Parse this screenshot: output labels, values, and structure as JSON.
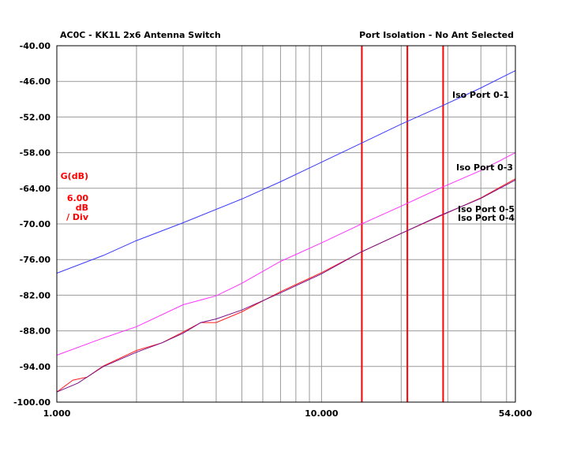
{
  "chart_data": {
    "type": "line",
    "title_left": "AC0C - KK1L 2x6 Antenna Switch",
    "title_right": "Port Isolation - No Ant Selected",
    "scale_label": {
      "unit": "G(dB)",
      "per_div_value": "6.00",
      "per_div_unit": "dB",
      "per_div_suffix": "/ Div"
    },
    "x_scale": "log",
    "xlim": [
      1.0,
      54.0
    ],
    "x_tick_labels": [
      {
        "value": 1.0,
        "label": "1.000"
      },
      {
        "value": 10.0,
        "label": "10.000"
      },
      {
        "value": 54.0,
        "label": "54.000"
      }
    ],
    "x_minor_gridlines": [
      2,
      3,
      4,
      5,
      6,
      7,
      8,
      9,
      20,
      30,
      40,
      50
    ],
    "ylim": [
      -100.0,
      -40.0
    ],
    "y_ticks": [
      {
        "value": -40,
        "label": "-40.00"
      },
      {
        "value": -46,
        "label": "-46.00"
      },
      {
        "value": -52,
        "label": "-52.00"
      },
      {
        "value": -58,
        "label": "-58.00"
      },
      {
        "value": -64,
        "label": "-64.00"
      },
      {
        "value": -70,
        "label": "-70.00"
      },
      {
        "value": -76,
        "label": "-76.00"
      },
      {
        "value": -82,
        "label": "-82.00"
      },
      {
        "value": -88,
        "label": "-88.00"
      },
      {
        "value": -94,
        "label": "-94.00"
      },
      {
        "value": -100,
        "label": "-100.00"
      }
    ],
    "markers": [
      14.2,
      21.1,
      28.8
    ],
    "marker_color": "#ff0000",
    "grid": true,
    "series": [
      {
        "name": "Iso Port 0-1",
        "color": "#3a3aff",
        "x": [
          1.0,
          1.5,
          2.0,
          3.0,
          5.0,
          7.0,
          10.0,
          14.0,
          20.0,
          28.0,
          40.0,
          54.0
        ],
        "y": [
          -78.3,
          -75.3,
          -72.8,
          -69.8,
          -65.8,
          -62.9,
          -59.6,
          -56.5,
          -53.2,
          -50.3,
          -47.1,
          -44.2
        ]
      },
      {
        "name": "Iso Port 0-3",
        "color": "#ff33ff",
        "x": [
          1.0,
          1.5,
          2.0,
          3.0,
          4.0,
          5.0,
          7.0,
          10.0,
          14.0,
          20.0,
          28.0,
          40.0,
          54.0
        ],
        "y": [
          -92.1,
          -89.2,
          -87.3,
          -83.6,
          -82.1,
          -80.0,
          -76.3,
          -73.2,
          -70.1,
          -67.0,
          -64.0,
          -61.0,
          -58.0
        ]
      },
      {
        "name": "Iso Port 0-5",
        "color": "#ff2020",
        "x": [
          1.0,
          1.15,
          1.3,
          1.5,
          2.0,
          2.5,
          3.0,
          3.5,
          4.0,
          5.0,
          7.0,
          10.0,
          14.0,
          20.0,
          28.0,
          40.0,
          54.0
        ],
        "y": [
          -98.3,
          -96.3,
          -95.8,
          -93.9,
          -91.3,
          -90.0,
          -88.2,
          -86.6,
          -86.6,
          -84.8,
          -81.4,
          -78.2,
          -74.8,
          -71.6,
          -68.7,
          -65.6,
          -62.4
        ]
      },
      {
        "name": "Iso Port 0-4",
        "color": "#7a0f8a",
        "x": [
          1.0,
          1.2,
          1.5,
          2.0,
          2.5,
          3.0,
          3.5,
          4.0,
          5.0,
          7.0,
          10.0,
          14.0,
          20.0,
          28.0,
          40.0,
          54.0
        ],
        "y": [
          -98.3,
          -96.8,
          -94.0,
          -91.6,
          -90.0,
          -88.4,
          -86.6,
          -86.0,
          -84.5,
          -81.6,
          -78.4,
          -74.8,
          -71.6,
          -68.6,
          -65.7,
          -62.6
        ]
      }
    ],
    "series_labels": [
      {
        "series": "Iso Port 0-1",
        "text": "Iso Port 0-1"
      },
      {
        "series": "Iso Port 0-3",
        "text": "Iso Port 0-3"
      },
      {
        "series": "Iso Port 0-5",
        "text": "Iso Port 0-5"
      },
      {
        "series": "Iso Port 0-4",
        "text": "Iso Port 0-4"
      }
    ]
  }
}
